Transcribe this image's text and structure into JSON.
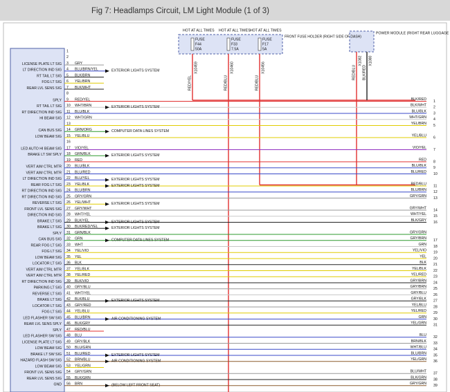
{
  "header": {
    "title": "Fig 7: Headlamps Circuit, LM Light Module (1 of 3)"
  },
  "fuses": [
    {
      "hot": "HOT AT ALL TIMES",
      "fuse": "FUSE",
      "id": "F44",
      "rating": "50A",
      "wire": "RED/YEL",
      "splice": "X10459"
    },
    {
      "hot": "HOT AT ALL TIMES",
      "fuse": "FUSE",
      "id": "F33",
      "rating": "7.5A",
      "wire": "RED/BLU",
      "splice": "X10460"
    },
    {
      "hot": "HOT AT ALL TIMES",
      "fuse": "FUSE",
      "id": "F17",
      "rating": "5A",
      "wire": "RED/BLU",
      "splice": "X10456"
    }
  ],
  "fuse_holder": "FRONT FUSE HOLDER (RIGHT SIDE OF DASH)",
  "power_module": {
    "label": "POWER MODULE (RIGHT REAR LUGGAGE COMPT)",
    "wires": [
      {
        "wire": "RED/BLU",
        "splice": "X1082"
      },
      {
        "wire": "BLK/RED",
        "splice": "X1080"
      }
    ]
  },
  "module": {
    "rows": [
      {
        "pin": "1"
      },
      {
        "pin": "2"
      },
      {
        "pin": "3",
        "sig": "LICENSE PLATE LT SIG",
        "wire": "GRY"
      },
      {
        "pin": "4",
        "sig": "LT DIRECTION IND SIG",
        "wire": "BLU/BRN/YEL",
        "dest": "EXTERIOR LIGHTS SYSTEM"
      },
      {
        "pin": "5",
        "sig": "RT TAIL LT SIG",
        "wire": "BLK/BRN"
      },
      {
        "pin": "6",
        "sig": "FOG LT SIG",
        "wire": "YEL/BRN"
      },
      {
        "pin": "7",
        "sig": "REAR LVL SENS SIG",
        "wire": "BLK/WHT"
      },
      {
        "pin": "8"
      },
      {
        "pin": "9",
        "sig": "SPLY",
        "wire": "RED/YEL",
        "right": "BLK/RED",
        "num": "1"
      },
      {
        "pin": "10",
        "sig": "RT TAIL LT SIG",
        "wire": "WHT/BRN",
        "dest": "EXTERIOR LIGHTS SYSTEM",
        "right": "BLK/WHT",
        "num": "2"
      },
      {
        "pin": "11",
        "sig": "RT DIRECTION IND SIG",
        "wire": "BLU/BLK",
        "right": "BLU/BLK",
        "num": "3"
      },
      {
        "pin": "12",
        "sig": "HI BEAM SIG",
        "wire": "WHT/GRN",
        "right": "WHT/GRN",
        "num": "4"
      },
      {
        "pin": "13",
        "right": "YEL/BRN",
        "num": "5"
      },
      {
        "pin": "14",
        "sig": "CAN BUS SIG",
        "wire": "GRN/ORG",
        "dest": "COMPUTER DATA LINES SYSTEM"
      },
      {
        "pin": "15",
        "sig": "LOW BEAM SIG",
        "wire": "YEL/BLU",
        "right": "YEL/BLU",
        "num": "6"
      },
      {
        "pin": "16"
      },
      {
        "pin": "17",
        "sig": "LED AUTO HI BEAM SIG",
        "wire": "VIO/YEL",
        "right": "VIO/YEL",
        "num": "7"
      },
      {
        "pin": "18",
        "sig": "BRAKE LT SW SPLY",
        "wire": "GRN/BLK",
        "dest": "EXTERIOR LIGHTS SYSTEM"
      },
      {
        "pin": "19",
        "wire": "RED",
        "right": "RED",
        "num": "8"
      },
      {
        "pin": "20",
        "sig": "VERT AIM CTRL MTR",
        "wire": "BLU/BLK",
        "right": "BLU/BLK",
        "num": "9"
      },
      {
        "pin": "21",
        "sig": "VERT AIM CTRL MTR",
        "wire": "BLU/RED",
        "right": "BLU/RED",
        "num": "10"
      },
      {
        "pin": "22",
        "sig": "LT DIRECTION IND SIG",
        "wire": "BLU/YEL",
        "dest": "EXTERIOR LIGHTS SYSTEM"
      },
      {
        "pin": "23",
        "sig": "REAR FOG LT SIG",
        "wire": "YEL/BLK",
        "dest": "EXTERIOR LIGHTS SYSTEM",
        "right": "RED/BLU",
        "num": "11"
      },
      {
        "pin": "24",
        "sig": "RT DIRECTION IND SIG",
        "wire": "BLU/BRN",
        "right": "BLU/BRN",
        "num": "12"
      },
      {
        "pin": "25",
        "sig": "RT DIRECTION IND SIG",
        "wire": "GRY/GRN",
        "right": "GRY/GRN",
        "num": "13"
      },
      {
        "pin": "26",
        "sig": "REVERSE LT SIG",
        "wire": "YEL/WHT",
        "dest": "EXTERIOR LIGHTS SYSTEM"
      },
      {
        "pin": "27",
        "sig": "FRONT LVL SENS SIG",
        "wire": "GRY/WHT",
        "right": "GRY/WHT",
        "num": "14"
      },
      {
        "pin": "28",
        "sig": "DIRECTION IND SIG",
        "wire": "WHT/YEL",
        "right": "WHT/YEL",
        "num": "15"
      },
      {
        "pin": "29",
        "sig": "BRAKE LT SIG",
        "wire": "BLK/YEL",
        "dest": "EXTERIOR LIGHTS SYSTEM",
        "right": "BLK/GRY",
        "num": "16"
      },
      {
        "pin": "30",
        "sig": "BRAKE LT SIG",
        "wire": "BLK/RED/YEL",
        "dest": "EXTERIOR LIGHTS SYSTEM"
      },
      {
        "pin": "31",
        "sig": "SPLY",
        "wire": "GRN/BLK",
        "right": "GRY/GRN"
      },
      {
        "pin": "32",
        "sig": "CAN BUS SIG",
        "wire": "GRN",
        "dest": "COMPUTER DATA LINES SYSTEM",
        "right": "GRY/BRN",
        "num": "17"
      },
      {
        "pin": "33",
        "sig": "REAR FOG LT SIG",
        "wire": "WHT",
        "right": "GRN",
        "num": "18"
      },
      {
        "pin": "34",
        "sig": "FOG LT SIG",
        "wire": "YEL/VIO",
        "right": "YEL/VIO",
        "num": "19"
      },
      {
        "pin": "35",
        "sig": "LOW BEAM SIG",
        "wire": "YEL",
        "right": "YEL",
        "num": "20"
      },
      {
        "pin": "36",
        "sig": "LOCATOR LT SIG",
        "wire": "BLK",
        "right": "BLK",
        "num": "21"
      },
      {
        "pin": "37",
        "sig": "VERT AIM CTRL MTR",
        "wire": "YEL/BLK",
        "right": "YEL/BLK",
        "num": "22"
      },
      {
        "pin": "38",
        "sig": "VERT AIM CTRL MTR",
        "wire": "YEL/RED",
        "right": "YEL/RED",
        "num": "23"
      },
      {
        "pin": "39",
        "sig": "RT DIRECTION IND SIG",
        "wire": "BLK/VIO",
        "right": "GRY/BRN",
        "num": "24"
      },
      {
        "pin": "40",
        "sig": "PARKING LT SIG",
        "wire": "GRY/BLU",
        "right": "GRY/BRN",
        "num": "25"
      },
      {
        "pin": "41",
        "sig": "REVERSE LT SIG",
        "wire": "WHT/YEL",
        "right": "GRY/BLU",
        "num": "26"
      },
      {
        "pin": "42",
        "sig": "BRAKE LT SIG",
        "wire": "BLK/BLU",
        "dest": "EXTERIOR LIGHTS SYSTEM",
        "right": "GRY/BLK",
        "num": "27"
      },
      {
        "pin": "43",
        "sig": "LOCATOR LT SIG",
        "wire": "GRY/RED",
        "right": "YEL/BLU",
        "num": "28"
      },
      {
        "pin": "44",
        "sig": "FOG LT SIG",
        "wire": "YEL/BLU",
        "right": "YEL/RED",
        "num": "29"
      },
      {
        "pin": "45",
        "sig": "LED FLASHER SW SIG",
        "wire": "BLU/BRN",
        "dest": "AIR CONDITIONING SYSTEM",
        "right": "GRN",
        "num": "30"
      },
      {
        "pin": "46",
        "sig": "REAR LVL SENS SPLY",
        "wire": "BLK/GRY",
        "right": "YEL/GRN",
        "num": "31"
      },
      {
        "pin": "47",
        "sig": "SPLY",
        "wire": "RED/BLU"
      },
      {
        "pin": "48",
        "sig": "LED FLASHER SW SIG",
        "wire": "BLU",
        "right": "BLU",
        "num": "32"
      },
      {
        "pin": "49",
        "sig": "LICENSE PLATE LT SIG",
        "wire": "GRY/BLK",
        "right": "BRN/BLK",
        "num": "33"
      },
      {
        "pin": "50",
        "sig": "LOW BEAM SIG",
        "wire": "BLU/GRN",
        "right": "WHT/BLU",
        "num": "34"
      },
      {
        "pin": "51",
        "sig": "BRAKE LT SW SIG",
        "wire": "BLU/RED",
        "dest": "EXTERIOR LIGHTS SYSTEM",
        "right": "BLU/BRN",
        "num": "35"
      },
      {
        "pin": "52",
        "sig": "HAZARD FLASH SW SIG",
        "wire": "BRN/BLU",
        "dest": "AIR CONDITIONING SYSTEM",
        "right": "YEL/GRN",
        "num": "36"
      },
      {
        "pin": "53",
        "sig": "LOW BEAM SIG",
        "wire": "YEL/GRN"
      },
      {
        "pin": "54",
        "sig": "FRONT LVL SENS SIG",
        "wire": "GRY/GRN",
        "right": "BLU/WHT",
        "num": "37"
      },
      {
        "pin": "55",
        "sig": "REAR LVL SENS SIG",
        "wire": "BLK/GRN",
        "right": "BLK/GRN",
        "num": "38"
      },
      {
        "pin": "56",
        "sig": "GND",
        "wire": "BRN",
        "dest": "(BELOW LEFT FRONT SEAT)",
        "right": "GRY/GRN",
        "num": "39"
      }
    ]
  }
}
